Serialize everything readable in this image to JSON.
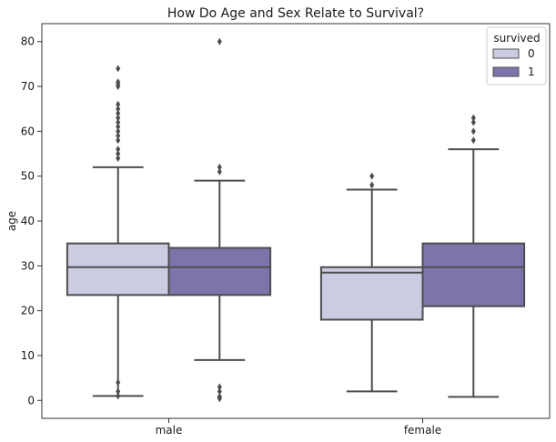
{
  "chart_data": {
    "type": "box",
    "title": "How Do Age and Sex Relate to Survival?",
    "xlabel": "",
    "ylabel": "age",
    "ylim": [
      -4,
      84
    ],
    "yticks": [
      0,
      10,
      20,
      30,
      40,
      50,
      60,
      70,
      80
    ],
    "categories": [
      "male",
      "female"
    ],
    "legend": {
      "title": "survived",
      "position": "top-right"
    },
    "series": [
      {
        "name": "0",
        "color": "#cbcbe2",
        "boxes": [
          {
            "category": "male",
            "whislo": 1,
            "q1": 23.5,
            "med": 29.7,
            "q3": 35,
            "whishi": 52,
            "fliers": [
              1,
              2,
              4,
              54,
              55,
              56,
              58,
              59,
              60,
              61,
              62,
              63,
              64,
              65,
              66,
              70,
              70.5,
              71,
              74
            ]
          },
          {
            "category": "female",
            "whislo": 2,
            "q1": 18,
            "med": 28.5,
            "q3": 29.7,
            "whishi": 47,
            "fliers": [
              48,
              50
            ]
          }
        ]
      },
      {
        "name": "1",
        "color": "#7e74aa",
        "boxes": [
          {
            "category": "male",
            "whislo": 9,
            "q1": 23.5,
            "med": 29.7,
            "q3": 34,
            "whishi": 49,
            "fliers": [
              0.4,
              0.7,
              0.9,
              2,
              3,
              51,
              52,
              80
            ]
          },
          {
            "category": "female",
            "whislo": 0.8,
            "q1": 21,
            "med": 29.7,
            "q3": 35,
            "whishi": 56,
            "fliers": [
              58,
              60,
              62,
              63
            ]
          }
        ]
      }
    ]
  }
}
